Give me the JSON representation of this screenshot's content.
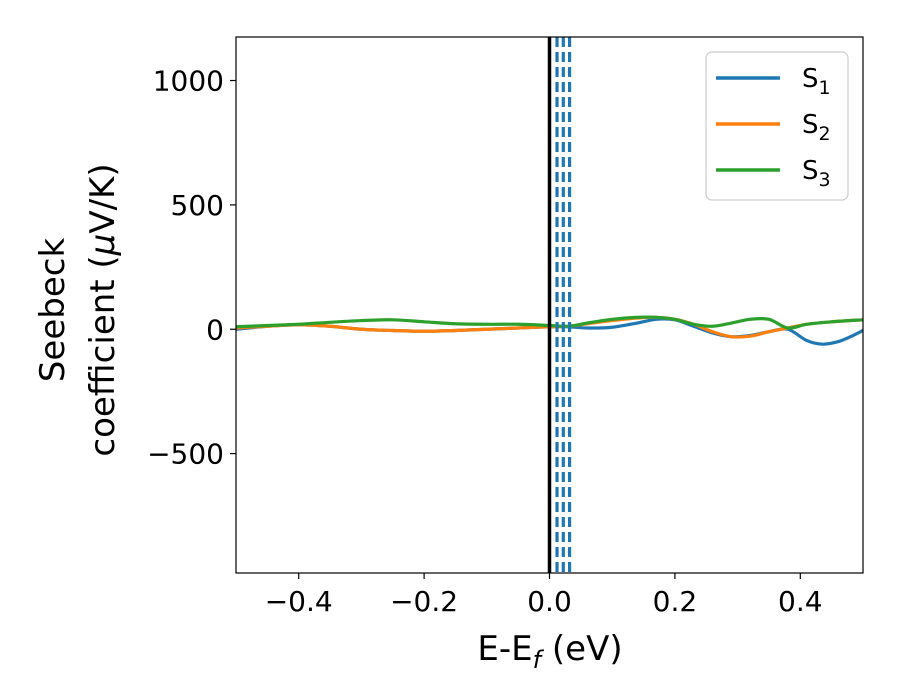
{
  "chart_data": {
    "type": "line",
    "xlabel": {
      "main": "E-E",
      "sub": "f",
      "suffix": " (eV)"
    },
    "ylabel": {
      "line1": "Seebeck",
      "line2_prefix": "coefficient  (",
      "mu": "μ",
      "line2_suffix": "V/K)"
    },
    "xlim": [
      -0.5,
      0.5
    ],
    "ylim": [
      -980,
      1175
    ],
    "xticks": [
      -0.4,
      -0.2,
      0.0,
      0.2,
      0.4
    ],
    "xtick_labels": [
      "−0.4",
      "−0.2",
      "0.0",
      "0.2",
      "0.4"
    ],
    "yticks": [
      1000,
      500,
      0,
      -500
    ],
    "ytick_labels": [
      "1000",
      "500",
      "0",
      "−500"
    ],
    "legend_position": "top-right",
    "grid": false,
    "fermi_line": {
      "x": 0.0,
      "color": "#000000"
    },
    "dashed_lines": {
      "x": [
        0.012,
        0.022,
        0.032
      ],
      "color": "#1f77b4"
    },
    "series": [
      {
        "name": "S",
        "sub": "1",
        "color": "#1f77b4",
        "x": [
          -0.5,
          -0.45,
          -0.4,
          -0.35,
          -0.3,
          -0.25,
          -0.2,
          -0.15,
          -0.1,
          -0.05,
          0.0,
          0.03,
          0.06,
          0.1,
          0.14,
          0.17,
          0.2,
          0.23,
          0.26,
          0.29,
          0.32,
          0.35,
          0.38,
          0.41,
          0.435,
          0.46,
          0.48,
          0.5
        ],
        "y": [
          0,
          12,
          18,
          12,
          0,
          -5,
          -8,
          -5,
          0,
          5,
          10,
          10,
          5,
          8,
          25,
          40,
          38,
          12,
          -15,
          -30,
          -25,
          -10,
          0,
          -45,
          -60,
          -50,
          -30,
          -5
        ]
      },
      {
        "name": "S",
        "sub": "2",
        "color": "#ff7f0e",
        "x": [
          -0.5,
          -0.45,
          -0.4,
          -0.35,
          -0.3,
          -0.25,
          -0.2,
          -0.15,
          -0.1,
          -0.05,
          0.0,
          0.03,
          0.06,
          0.1,
          0.14,
          0.17,
          0.2,
          0.23,
          0.26,
          0.29,
          0.32,
          0.35,
          0.38,
          0.41,
          0.45,
          0.5
        ],
        "y": [
          5,
          12,
          18,
          12,
          0,
          -5,
          -8,
          -5,
          0,
          5,
          10,
          12,
          22,
          35,
          45,
          48,
          40,
          20,
          -10,
          -30,
          -28,
          -10,
          5,
          20,
          30,
          38
        ]
      },
      {
        "name": "S",
        "sub": "3",
        "color": "#2ca02c",
        "x": [
          -0.5,
          -0.45,
          -0.4,
          -0.35,
          -0.3,
          -0.25,
          -0.2,
          -0.15,
          -0.1,
          -0.05,
          0.0,
          0.03,
          0.06,
          0.1,
          0.14,
          0.17,
          0.2,
          0.23,
          0.26,
          0.29,
          0.32,
          0.35,
          0.38,
          0.41,
          0.45,
          0.5
        ],
        "y": [
          10,
          15,
          20,
          28,
          35,
          38,
          30,
          22,
          20,
          20,
          15,
          12,
          25,
          40,
          48,
          48,
          40,
          20,
          12,
          25,
          40,
          40,
          5,
          20,
          30,
          38
        ]
      }
    ]
  }
}
